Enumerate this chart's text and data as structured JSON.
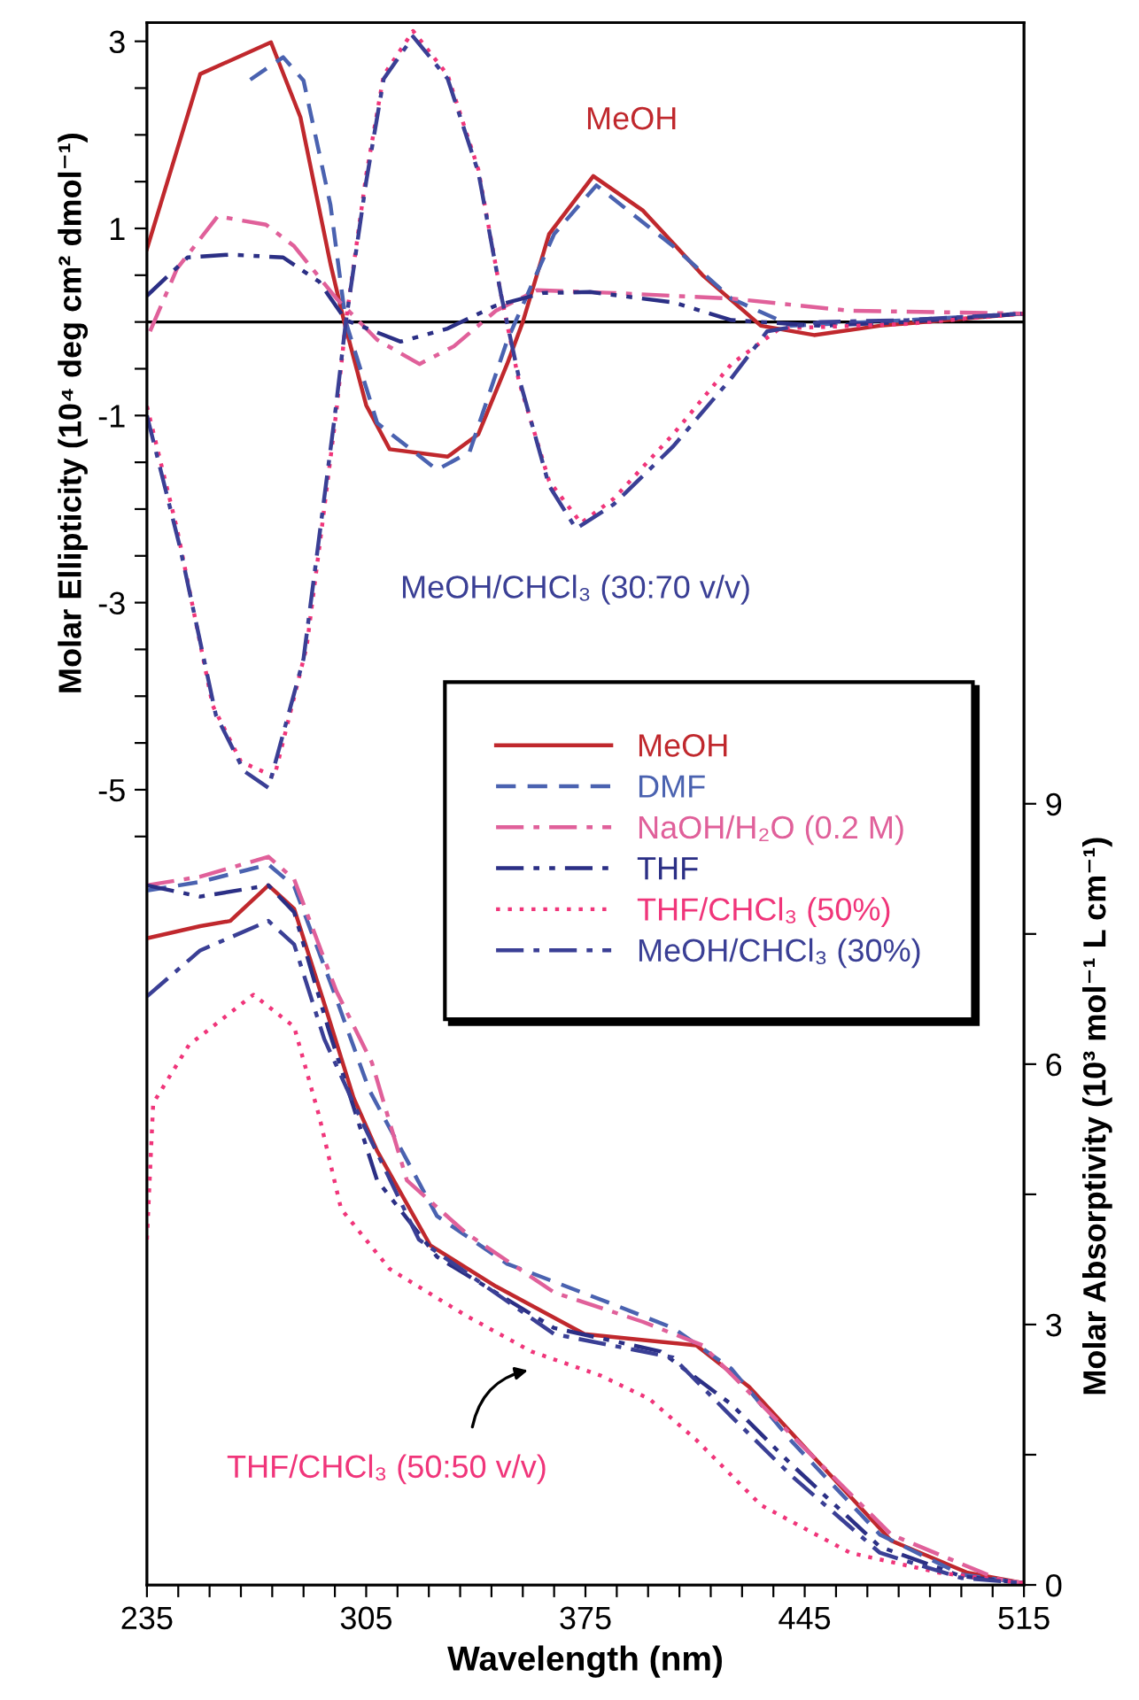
{
  "chart_data": {
    "type": "line",
    "xlabel": "Wavelength (nm)",
    "ylabel": "Molar Ellipticity (10⁴ deg cm² dmol⁻¹)",
    "y2label": "Molar Absorptivity (10³ mol⁻¹ L cm⁻¹)",
    "annotations": [
      "MeOH",
      "MeOH/CHCl₃ (30:70 v/v)",
      "THF/CHCl₃ (50:50 v/v)"
    ],
    "xlim": [
      235,
      515
    ],
    "ylim": [
      -13.5,
      3.2
    ],
    "y2lim": [
      0,
      18
    ],
    "xticks": [
      235,
      {
        "value": 245,
        "label": null
      },
      {
        "value": 255,
        "label": null
      },
      {
        "value": 265,
        "label": null
      },
      {
        "value": 275,
        "label": null
      },
      {
        "value": 285,
        "label": null
      },
      {
        "value": 295,
        "label": null
      },
      305,
      {
        "value": 315,
        "label": null
      },
      {
        "value": 325,
        "label": null
      },
      {
        "value": 335,
        "label": null
      },
      {
        "value": 345,
        "label": null
      },
      {
        "value": 355,
        "label": null
      },
      {
        "value": 365,
        "label": null
      },
      375,
      {
        "value": 385,
        "label": null
      },
      {
        "value": 395,
        "label": null
      },
      {
        "value": 405,
        "label": null
      },
      {
        "value": 415,
        "label": null
      },
      {
        "value": 425,
        "label": null
      },
      {
        "value": 435,
        "label": null
      },
      445,
      {
        "value": 455,
        "label": null
      },
      {
        "value": 465,
        "label": null
      },
      {
        "value": 475,
        "label": null
      },
      {
        "value": 485,
        "label": null
      },
      {
        "value": 495,
        "label": null
      },
      {
        "value": 505,
        "label": null
      },
      515
    ],
    "yticks": [
      {
        "value": -5.5,
        "label": null
      },
      -5,
      {
        "value": -4.5,
        "label": null
      },
      {
        "value": -4,
        "label": null
      },
      {
        "value": -3.5,
        "label": null
      },
      -3,
      {
        "value": -2.5,
        "label": null
      },
      {
        "value": -2,
        "label": null
      },
      {
        "value": -1.5,
        "label": null
      },
      -1,
      {
        "value": -0.5,
        "label": null
      },
      {
        "value": 0,
        "label": null
      },
      {
        "value": 0.5,
        "label": null
      },
      1,
      {
        "value": 1.5,
        "label": null
      },
      {
        "value": 2,
        "label": null
      },
      {
        "value": 2.5,
        "label": null
      },
      3
    ],
    "y2ticks": [
      0,
      {
        "value": 1.5,
        "label": null
      },
      3,
      {
        "value": 4.5,
        "label": null
      },
      6,
      {
        "value": 7.5,
        "label": null
      },
      9
    ],
    "ref_lines": [
      {
        "axis": "y",
        "value": 0,
        "color": "#000000"
      }
    ],
    "legend": "center right",
    "series": [
      {
        "name": "MeOH",
        "color": "#c0282d",
        "line_style": "solid",
        "x": [
          235,
          252,
          274.6,
          284,
          293.6,
          298,
          305,
          312.5,
          331,
          340.8,
          350,
          355,
          363.4,
          377.5,
          393.4,
          412.4,
          431,
          448,
          469,
          515
        ],
        "values": [
          0.78,
          2.65,
          2.99,
          2.19,
          0.62,
          0,
          -0.89,
          -1.36,
          -1.44,
          -1.2,
          -0.45,
          0,
          0.94,
          1.56,
          1.19,
          0.5,
          -0.04,
          -0.14,
          -0.04,
          0.09
        ]
      },
      {
        "name": "DMF",
        "color": "#4a62b0",
        "line_style": "dashed",
        "x": [
          268,
          278.5,
          285,
          293.6,
          298.5,
          308.5,
          327.6,
          338,
          350,
          365,
          378.5,
          403,
          421.6,
          440.7,
          478,
          515
        ],
        "values": [
          2.59,
          2.83,
          2.58,
          1.25,
          0,
          -1.08,
          -1.58,
          -1.39,
          -0.2,
          0.94,
          1.46,
          0.81,
          0.25,
          -0.04,
          0.02,
          0.09
        ]
      },
      {
        "name": "NaOH/H₂O (0.2 M)",
        "color": "#e0609a",
        "line_style": "dashdot",
        "x": [
          236,
          244.6,
          257.6,
          273,
          282,
          295.5,
          308.5,
          322,
          333,
          346.4,
          359.5,
          384,
          421.6,
          459.5,
          515
        ],
        "values": [
          -0.1,
          0.57,
          1.13,
          1.04,
          0.81,
          0.25,
          -0.19,
          -0.45,
          -0.26,
          0.12,
          0.34,
          0.31,
          0.25,
          0.12,
          0.09
        ]
      },
      {
        "name": "THF",
        "color": "#2b2f85",
        "line_style": "dashdotdot",
        "x": [
          235,
          248,
          261.6,
          278.5,
          290,
          298.5,
          316,
          331,
          346,
          361.5,
          376.5,
          403,
          421.6,
          450,
          478,
          515
        ],
        "values": [
          0.28,
          0.69,
          0.72,
          0.69,
          0.43,
          0.02,
          -0.21,
          -0.07,
          0.17,
          0.31,
          0.32,
          0.21,
          0.02,
          -0.04,
          0,
          0.09
        ]
      },
      {
        "name": "THF/CHCl₃ (50%)",
        "color": "#f0357a",
        "line_style": "dotted",
        "x": [
          235,
          244.6,
          256,
          265,
          275.7,
          286,
          290.8,
          295.5,
          298.5,
          305,
          310.6,
          320,
          331,
          340.8,
          348,
          353.8,
          363.4,
          373.6,
          384,
          403,
          421.6,
          437,
          478,
          515
        ],
        "values": [
          -0.9,
          -2.21,
          -4.1,
          -4.7,
          -4.86,
          -3.47,
          -2.21,
          -0.95,
          0,
          1.57,
          2.64,
          3.11,
          2.64,
          1.63,
          0.3,
          -0.64,
          -1.7,
          -2.15,
          -1.89,
          -1.2,
          -0.45,
          -0.07,
          -0.02,
          0.09
        ]
      },
      {
        "name": "MeOH/CHCl₃ (30%)",
        "color": "#3a3f95",
        "line_style": "dashdot",
        "x": [
          235,
          245.5,
          257,
          266,
          273.8,
          285,
          290,
          295,
          298.5,
          305,
          310.6,
          320,
          331,
          340.8,
          348,
          353.8,
          363.4,
          372,
          384,
          403,
          421.6,
          433,
          450,
          478,
          515
        ],
        "values": [
          -1.0,
          -2.4,
          -4.2,
          -4.8,
          -4.98,
          -3.6,
          -2.3,
          -1.0,
          0,
          1.5,
          2.6,
          3.05,
          2.6,
          1.6,
          0.3,
          -0.6,
          -1.75,
          -2.21,
          -1.95,
          -1.33,
          -0.6,
          -0.1,
          0,
          0.02,
          0.09
        ]
      },
      {
        "color": "#c0282d",
        "line_style": "solid",
        "axis": "y2",
        "x": [
          235,
          252,
          261.6,
          273.8,
          282,
          291.6,
          301,
          308.5,
          325.5,
          346.4,
          374.7,
          410.4,
          427.3,
          446.4,
          472.6,
          497,
          515
        ],
        "values": [
          7.45,
          7.59,
          7.65,
          8.06,
          7.79,
          6.7,
          5.61,
          5.0,
          3.91,
          3.44,
          2.89,
          2.76,
          2.28,
          1.53,
          0.51,
          0.14,
          0.02
        ]
      },
      {
        "color": "#4a62b0",
        "line_style": "dashed",
        "axis": "y2",
        "x": [
          235,
          252,
          273.8,
          282,
          294,
          306,
          327.6,
          350,
          384,
          403,
          421.6,
          440.7,
          469,
          495,
          515
        ],
        "values": [
          8.0,
          8.1,
          8.3,
          8.05,
          6.9,
          5.7,
          4.25,
          3.7,
          3.23,
          2.96,
          2.49,
          1.66,
          0.58,
          0.12,
          0.02
        ]
      },
      {
        "color": "#e0609a",
        "line_style": "dashdot",
        "axis": "y2",
        "x": [
          235,
          252,
          273.8,
          282,
          295.5,
          306.8,
          318,
          337,
          365,
          393.4,
          412.4,
          440.7,
          472.6,
          506.5,
          515
        ],
        "values": [
          8.06,
          8.16,
          8.39,
          8.13,
          6.84,
          6.02,
          4.66,
          4.05,
          3.37,
          3.03,
          2.76,
          1.73,
          0.58,
          0.07,
          0.02
        ]
      },
      {
        "color": "#2b2f85",
        "line_style": "dashdotdot",
        "axis": "y2",
        "x": [
          235,
          252,
          273.8,
          282,
          293,
          308.5,
          327.6,
          365,
          399,
          421.6,
          440.7,
          469,
          495,
          515
        ],
        "values": [
          8.06,
          7.93,
          8.06,
          7.75,
          6.4,
          4.66,
          3.78,
          2.96,
          2.69,
          2.08,
          1.39,
          0.44,
          0.1,
          0.02
        ]
      },
      {
        "color": "#f0357a",
        "line_style": "dotted",
        "axis": "y2",
        "x": [
          235,
          237,
          248.4,
          269,
          282,
          290,
          297,
          312.5,
          337,
          357.7,
          380,
          395.5,
          410.4,
          431,
          459.5,
          488,
          515
        ],
        "values": [
          3.98,
          5.55,
          6.22,
          6.8,
          6.43,
          5.4,
          4.33,
          3.64,
          3.1,
          2.69,
          2.41,
          2.14,
          1.67,
          0.92,
          0.37,
          0.14,
          0.02
        ]
      },
      {
        "color": "#3a3f95",
        "line_style": "dashdot",
        "axis": "y2",
        "x": [
          235,
          252,
          273.8,
          282,
          291.6,
          303.5,
          321.8,
          365,
          403,
          421.6,
          440.7,
          469,
          495,
          515
        ],
        "values": [
          6.78,
          7.31,
          7.65,
          7.38,
          6.29,
          5.35,
          3.98,
          2.89,
          2.62,
          1.94,
          1.26,
          0.37,
          0.08,
          0.02
        ]
      }
    ]
  }
}
